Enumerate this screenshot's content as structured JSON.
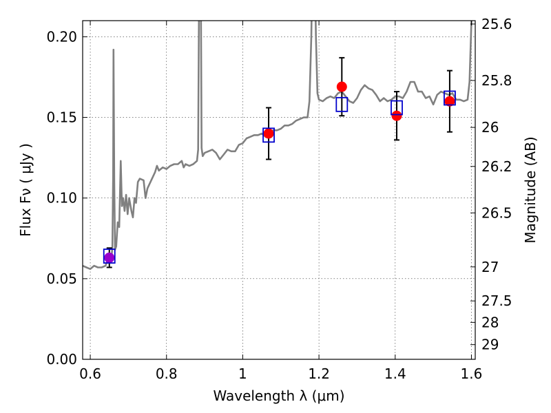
{
  "chart_data": {
    "type": "line",
    "xlabel": "Wavelength  λ (μm)",
    "ylabel": "Flux  Fν  ( μJy )",
    "ylabel_right": "Magnitude (AB)",
    "xlim": [
      0.58,
      1.61
    ],
    "ylim": [
      0.0,
      0.21
    ],
    "x_ticks": [
      0.6,
      0.8,
      1.0,
      1.2,
      1.4,
      1.6
    ],
    "x_tick_labels": [
      "0.6",
      "0.8",
      "1",
      "1.2",
      "1.4",
      "1.6"
    ],
    "y_ticks": [
      0.0,
      0.05,
      0.1,
      0.15,
      0.2
    ],
    "y_tick_labels": [
      "0.00",
      "0.05",
      "0.10",
      "0.15",
      "0.20"
    ],
    "right_ticks": [
      {
        "label": "25.6",
        "flux": 0.2079
      },
      {
        "label": "25.8",
        "flux": 0.1729
      },
      {
        "label": "26",
        "flux": 0.1438
      },
      {
        "label": "26.2",
        "flux": 0.1196
      },
      {
        "label": "26.5",
        "flux": 0.0908
      },
      {
        "label": "27",
        "flux": 0.0573
      },
      {
        "label": "27.5",
        "flux": 0.0362
      },
      {
        "label": "28",
        "flux": 0.0229
      },
      {
        "label": "29",
        "flux": 0.0091
      }
    ],
    "grid": true,
    "series": [
      {
        "style": "line",
        "color": "#808080",
        "points": [
          [
            0.58,
            0.058
          ],
          [
            0.59,
            0.057
          ],
          [
            0.6,
            0.056
          ],
          [
            0.61,
            0.058
          ],
          [
            0.62,
            0.057
          ],
          [
            0.63,
            0.057
          ],
          [
            0.64,
            0.058
          ],
          [
            0.648,
            0.063
          ],
          [
            0.652,
            0.06
          ],
          [
            0.656,
            0.064
          ],
          [
            0.658,
            0.07
          ],
          [
            0.66,
            0.115
          ],
          [
            0.661,
            0.192
          ],
          [
            0.663,
            0.11
          ],
          [
            0.665,
            0.068
          ],
          [
            0.668,
            0.07
          ],
          [
            0.672,
            0.085
          ],
          [
            0.676,
            0.082
          ],
          [
            0.68,
            0.123
          ],
          [
            0.683,
            0.095
          ],
          [
            0.686,
            0.1
          ],
          [
            0.69,
            0.092
          ],
          [
            0.694,
            0.102
          ],
          [
            0.698,
            0.09
          ],
          [
            0.702,
            0.1
          ],
          [
            0.708,
            0.092
          ],
          [
            0.712,
            0.088
          ],
          [
            0.716,
            0.1
          ],
          [
            0.72,
            0.097
          ],
          [
            0.725,
            0.11
          ],
          [
            0.73,
            0.112
          ],
          [
            0.74,
            0.111
          ],
          [
            0.745,
            0.1
          ],
          [
            0.75,
            0.106
          ],
          [
            0.76,
            0.111
          ],
          [
            0.77,
            0.116
          ],
          [
            0.775,
            0.12
          ],
          [
            0.78,
            0.117
          ],
          [
            0.79,
            0.119
          ],
          [
            0.8,
            0.118
          ],
          [
            0.81,
            0.12
          ],
          [
            0.82,
            0.121
          ],
          [
            0.83,
            0.121
          ],
          [
            0.84,
            0.123
          ],
          [
            0.845,
            0.119
          ],
          [
            0.85,
            0.121
          ],
          [
            0.86,
            0.12
          ],
          [
            0.87,
            0.121
          ],
          [
            0.88,
            0.123
          ],
          [
            0.883,
            0.13
          ],
          [
            0.885,
            0.21
          ],
          [
            0.888,
            0.23
          ],
          [
            0.89,
            0.23
          ],
          [
            0.892,
            0.131
          ],
          [
            0.895,
            0.126
          ],
          [
            0.9,
            0.128
          ],
          [
            0.91,
            0.129
          ],
          [
            0.92,
            0.13
          ],
          [
            0.93,
            0.128
          ],
          [
            0.94,
            0.124
          ],
          [
            0.95,
            0.127
          ],
          [
            0.96,
            0.13
          ],
          [
            0.97,
            0.129
          ],
          [
            0.98,
            0.129
          ],
          [
            0.99,
            0.133
          ],
          [
            1.0,
            0.134
          ],
          [
            1.01,
            0.137
          ],
          [
            1.02,
            0.138
          ],
          [
            1.03,
            0.139
          ],
          [
            1.04,
            0.139
          ],
          [
            1.05,
            0.14
          ],
          [
            1.06,
            0.138
          ],
          [
            1.07,
            0.14
          ],
          [
            1.08,
            0.142
          ],
          [
            1.09,
            0.142
          ],
          [
            1.1,
            0.143
          ],
          [
            1.11,
            0.145
          ],
          [
            1.12,
            0.145
          ],
          [
            1.13,
            0.146
          ],
          [
            1.14,
            0.148
          ],
          [
            1.15,
            0.149
          ],
          [
            1.16,
            0.15
          ],
          [
            1.17,
            0.15
          ],
          [
            1.175,
            0.16
          ],
          [
            1.18,
            0.2
          ],
          [
            1.182,
            0.23
          ],
          [
            1.186,
            0.23
          ],
          [
            1.19,
            0.23
          ],
          [
            1.192,
            0.2
          ],
          [
            1.196,
            0.165
          ],
          [
            1.2,
            0.161
          ],
          [
            1.21,
            0.16
          ],
          [
            1.22,
            0.162
          ],
          [
            1.23,
            0.163
          ],
          [
            1.24,
            0.162
          ],
          [
            1.25,
            0.165
          ],
          [
            1.26,
            0.166
          ],
          [
            1.27,
            0.163
          ],
          [
            1.28,
            0.16
          ],
          [
            1.29,
            0.159
          ],
          [
            1.3,
            0.162
          ],
          [
            1.31,
            0.167
          ],
          [
            1.32,
            0.17
          ],
          [
            1.33,
            0.168
          ],
          [
            1.34,
            0.167
          ],
          [
            1.35,
            0.164
          ],
          [
            1.36,
            0.16
          ],
          [
            1.37,
            0.162
          ],
          [
            1.38,
            0.16
          ],
          [
            1.39,
            0.161
          ],
          [
            1.4,
            0.163
          ],
          [
            1.41,
            0.163
          ],
          [
            1.42,
            0.162
          ],
          [
            1.43,
            0.166
          ],
          [
            1.44,
            0.172
          ],
          [
            1.45,
            0.172
          ],
          [
            1.46,
            0.166
          ],
          [
            1.47,
            0.166
          ],
          [
            1.48,
            0.162
          ],
          [
            1.49,
            0.163
          ],
          [
            1.5,
            0.158
          ],
          [
            1.51,
            0.164
          ],
          [
            1.52,
            0.166
          ],
          [
            1.53,
            0.165
          ],
          [
            1.54,
            0.164
          ],
          [
            1.55,
            0.165
          ],
          [
            1.56,
            0.161
          ],
          [
            1.57,
            0.161
          ],
          [
            1.58,
            0.16
          ],
          [
            1.59,
            0.161
          ],
          [
            1.595,
            0.172
          ],
          [
            1.6,
            0.21
          ],
          [
            1.605,
            0.23
          ]
        ]
      },
      {
        "style": "markers",
        "marker": "circle",
        "points": [
          {
            "x": 0.65,
            "y": 0.063,
            "yerr": 0.006,
            "color": "#9900cc"
          },
          {
            "x": 1.068,
            "y": 0.14,
            "yerr": 0.016,
            "color": "#ff0000"
          },
          {
            "x": 1.26,
            "y": 0.169,
            "yerr": 0.018,
            "color": "#ff0000"
          },
          {
            "x": 1.404,
            "y": 0.151,
            "yerr": 0.015,
            "color": "#ff0000"
          },
          {
            "x": 1.543,
            "y": 0.16,
            "yerr": 0.019,
            "color": "#ff0000"
          }
        ]
      },
      {
        "style": "markers",
        "marker": "open-square",
        "color": "#0000cc",
        "points": [
          {
            "x": 0.65,
            "y": 0.064
          },
          {
            "x": 1.068,
            "y": 0.139
          },
          {
            "x": 1.26,
            "y": 0.158
          },
          {
            "x": 1.404,
            "y": 0.156
          },
          {
            "x": 1.543,
            "y": 0.162
          }
        ]
      }
    ]
  }
}
